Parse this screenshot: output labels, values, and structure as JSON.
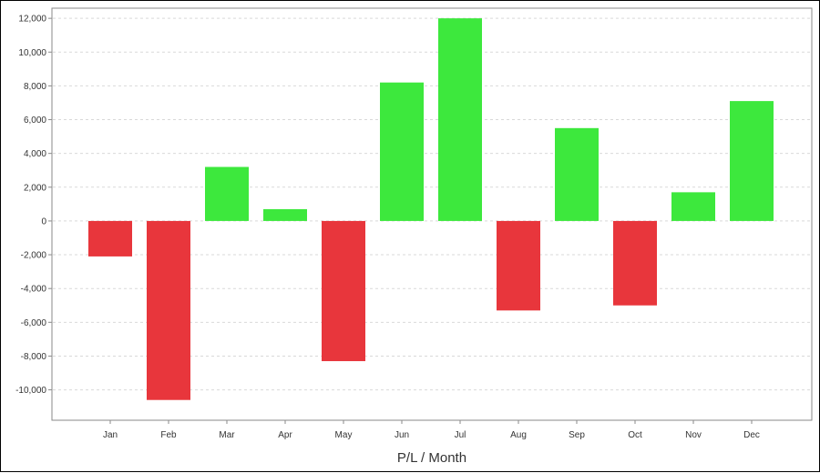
{
  "chart_data": {
    "type": "bar",
    "title": "",
    "xlabel": "P/L / Month",
    "ylabel": "",
    "categories": [
      "Jan",
      "Feb",
      "Mar",
      "Apr",
      "May",
      "Jun",
      "Jul",
      "Aug",
      "Sep",
      "Oct",
      "Nov",
      "Dec"
    ],
    "values": [
      -2100,
      -10600,
      3200,
      700,
      -8300,
      8200,
      12000,
      -5300,
      5500,
      -5000,
      1700,
      7100
    ],
    "ylim": [
      -11800,
      12600
    ],
    "yticks": [
      12000,
      10000,
      8000,
      6000,
      4000,
      2000,
      0,
      -2000,
      -4000,
      -6000,
      -8000,
      -10000
    ],
    "ytick_labels": [
      "12,000",
      "10,000",
      "8,000",
      "6,000",
      "4,000",
      "2,000",
      "0",
      "-2,000",
      "-4,000",
      "-6,000",
      "-8,000",
      "-10,000"
    ],
    "grid": true,
    "legend": false,
    "colors": {
      "positive": "#3de83d",
      "negative": "#e8363c",
      "grid": "#d9d9d9",
      "axis": "#8a8a8a"
    }
  }
}
